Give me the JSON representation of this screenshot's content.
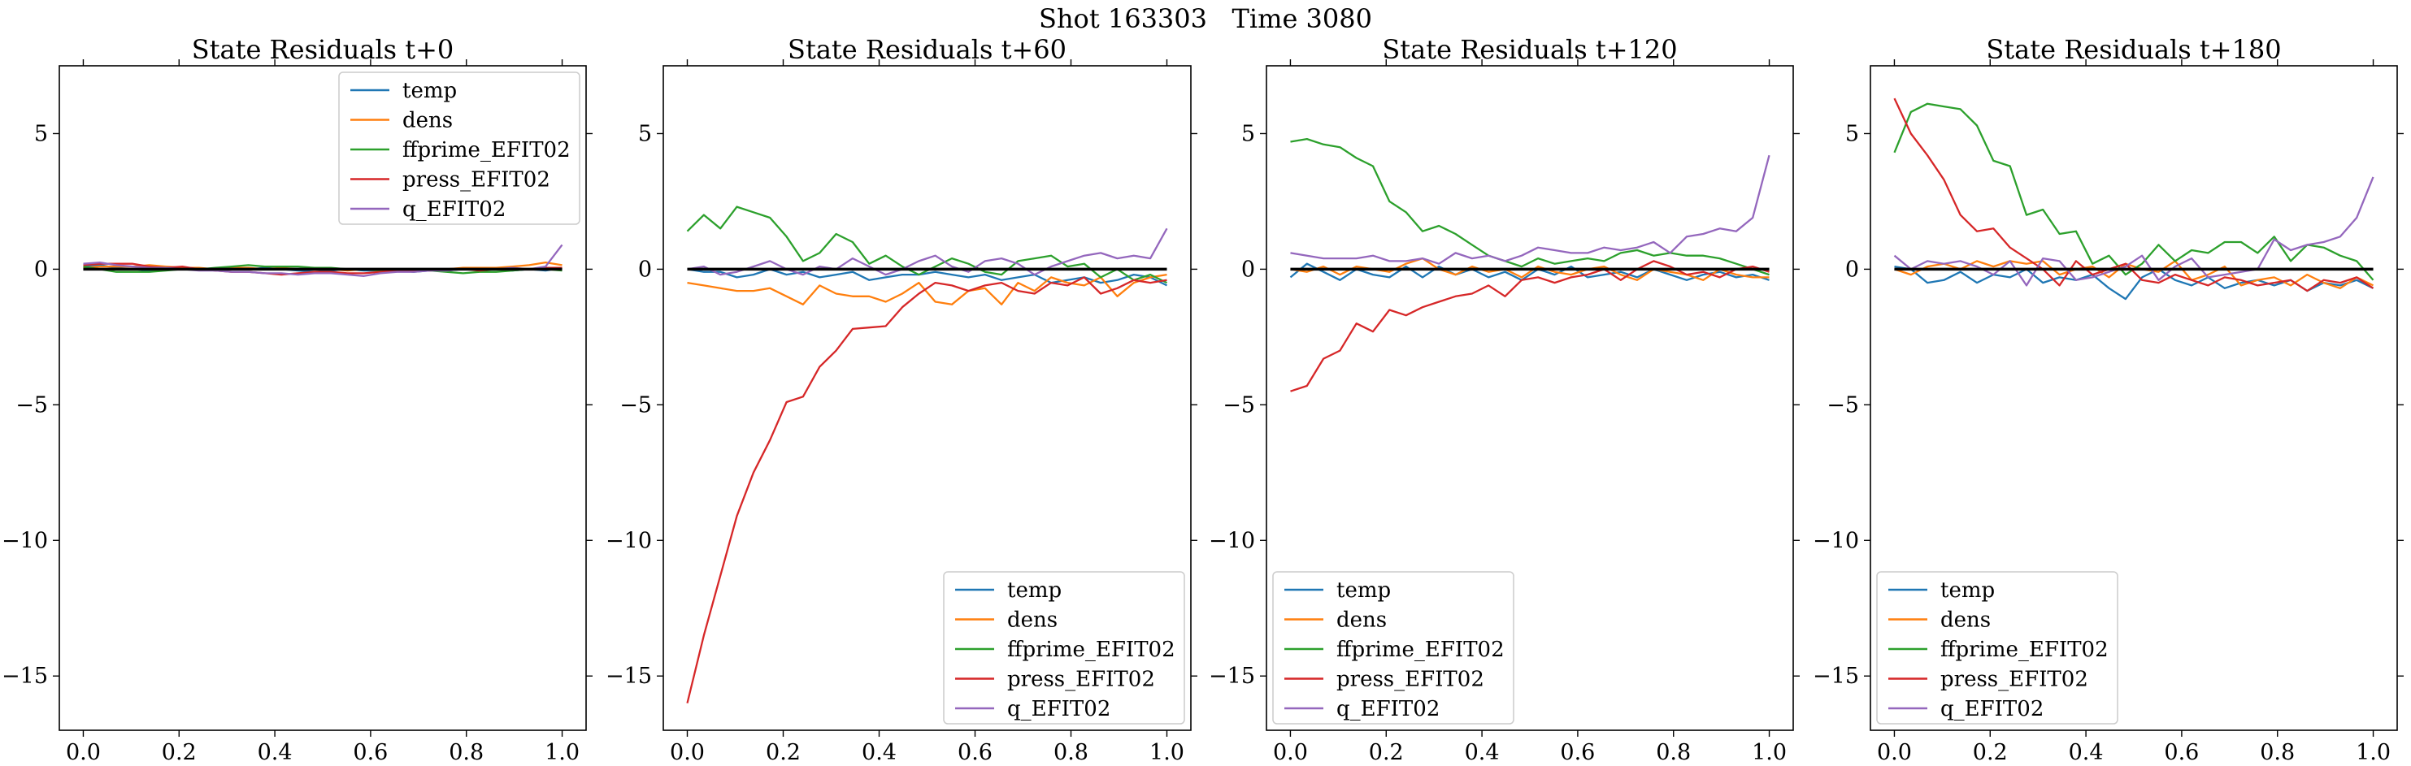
{
  "suptitle": "Shot 163303   Time 3080",
  "colors": {
    "temp": "#1f77b4",
    "dens": "#ff7f0e",
    "ffprime_EFIT02": "#2ca02c",
    "press_EFIT02": "#d62728",
    "q_EFIT02": "#9467bd",
    "zero_line": "#000000"
  },
  "chart_data": [
    {
      "type": "line",
      "title": "State Residuals t+0",
      "xlabel": "",
      "ylabel": "",
      "xlim": [
        -0.05,
        1.05
      ],
      "ylim": [
        -17,
        7.5
      ],
      "xticks": [
        "0.0",
        "0.2",
        "0.4",
        "0.6",
        "0.8",
        "1.0"
      ],
      "yticks": [
        "−15",
        "−10",
        "−5",
        "0",
        "5"
      ],
      "grid": false,
      "legend_position": "top-right",
      "zero_line": true,
      "x": [
        0,
        0.0345,
        0.069,
        0.1034,
        0.1379,
        0.1724,
        0.2069,
        0.2414,
        0.2759,
        0.3103,
        0.3448,
        0.3793,
        0.4138,
        0.4483,
        0.4828,
        0.5172,
        0.5517,
        0.5862,
        0.6207,
        0.6552,
        0.6897,
        0.7241,
        0.7586,
        0.7931,
        0.8276,
        0.8621,
        0.8966,
        0.931,
        0.9655,
        1.0
      ],
      "series": [
        {
          "name": "temp",
          "values": [
            0.1,
            0.15,
            0.05,
            0.0,
            -0.05,
            0.0,
            0.05,
            0.0,
            -0.05,
            0.0,
            0.0,
            0.05,
            0.0,
            -0.05,
            -0.1,
            -0.05,
            0.0,
            -0.05,
            -0.05,
            -0.05,
            -0.1,
            -0.05,
            -0.05,
            0.0,
            0.05,
            0.0,
            -0.05,
            0.0,
            -0.05,
            0.05
          ]
        },
        {
          "name": "dens",
          "values": [
            0.05,
            0.1,
            0.1,
            0.1,
            0.15,
            0.1,
            0.05,
            0.05,
            0.0,
            0.05,
            0.05,
            0.0,
            0.05,
            0.0,
            0.0,
            0.0,
            -0.05,
            0.0,
            -0.05,
            0.0,
            0.0,
            0.0,
            0.0,
            0.05,
            0.05,
            0.05,
            0.1,
            0.15,
            0.25,
            0.15
          ]
        },
        {
          "name": "ffprime_EFIT02",
          "values": [
            0.1,
            0.0,
            -0.1,
            -0.1,
            -0.1,
            -0.05,
            0.0,
            0.0,
            0.05,
            0.1,
            0.15,
            0.1,
            0.1,
            0.1,
            0.05,
            0.05,
            0.0,
            0.0,
            -0.05,
            -0.05,
            0.0,
            -0.05,
            -0.1,
            -0.15,
            -0.1,
            -0.1,
            -0.05,
            0.0,
            0.0,
            -0.05
          ]
        },
        {
          "name": "press_EFIT02",
          "values": [
            0.15,
            0.2,
            0.2,
            0.2,
            0.1,
            0.05,
            0.1,
            0.0,
            -0.05,
            -0.1,
            -0.1,
            -0.15,
            -0.2,
            -0.15,
            -0.1,
            -0.1,
            -0.15,
            -0.15,
            -0.1,
            -0.05,
            -0.05,
            -0.05,
            0.0,
            0.0,
            -0.05,
            0.0,
            0.0,
            0.0,
            0.05,
            0.05
          ]
        },
        {
          "name": "q_EFIT02",
          "values": [
            0.2,
            0.25,
            0.15,
            0.1,
            0.05,
            0.05,
            0.0,
            -0.05,
            -0.05,
            -0.1,
            -0.1,
            -0.15,
            -0.15,
            -0.2,
            -0.15,
            -0.15,
            -0.2,
            -0.25,
            -0.15,
            -0.1,
            -0.1,
            -0.05,
            -0.05,
            0.0,
            0.0,
            0.0,
            0.05,
            0.0,
            0.1,
            0.9
          ]
        }
      ]
    },
    {
      "type": "line",
      "title": "State Residuals t+60",
      "xlabel": "",
      "ylabel": "",
      "xlim": [
        -0.05,
        1.05
      ],
      "ylim": [
        -17,
        7.5
      ],
      "xticks": [
        "0.0",
        "0.2",
        "0.4",
        "0.6",
        "0.8",
        "1.0"
      ],
      "yticks": [
        "−15",
        "−10",
        "−5",
        "0",
        "5"
      ],
      "grid": false,
      "legend_position": "bottom-right",
      "zero_line": true,
      "x": [
        0,
        0.0345,
        0.069,
        0.1034,
        0.1379,
        0.1724,
        0.2069,
        0.2414,
        0.2759,
        0.3103,
        0.3448,
        0.3793,
        0.4138,
        0.4483,
        0.4828,
        0.5172,
        0.5517,
        0.5862,
        0.6207,
        0.6552,
        0.6897,
        0.7241,
        0.7586,
        0.7931,
        0.8276,
        0.8621,
        0.8966,
        0.931,
        0.9655,
        1.0
      ],
      "series": [
        {
          "name": "temp",
          "values": [
            0.0,
            -0.1,
            -0.1,
            -0.3,
            -0.2,
            0.0,
            -0.2,
            -0.1,
            -0.3,
            -0.2,
            -0.1,
            -0.4,
            -0.3,
            -0.2,
            -0.2,
            -0.1,
            -0.2,
            -0.3,
            -0.2,
            -0.4,
            -0.3,
            -0.2,
            -0.5,
            -0.4,
            -0.3,
            -0.5,
            -0.4,
            -0.2,
            -0.3,
            -0.6
          ]
        },
        {
          "name": "dens",
          "values": [
            -0.5,
            -0.6,
            -0.7,
            -0.8,
            -0.8,
            -0.7,
            -1.0,
            -1.3,
            -0.6,
            -0.9,
            -1.0,
            -1.0,
            -1.2,
            -0.9,
            -0.5,
            -1.2,
            -1.3,
            -0.8,
            -0.7,
            -1.3,
            -0.5,
            -0.8,
            -0.3,
            -0.5,
            -0.6,
            -0.3,
            -1.0,
            -0.5,
            -0.3,
            -0.2
          ]
        },
        {
          "name": "ffprime_EFIT02",
          "values": [
            1.4,
            2.0,
            1.5,
            2.3,
            2.1,
            1.9,
            1.2,
            0.3,
            0.6,
            1.3,
            1.0,
            0.2,
            0.5,
            0.1,
            -0.2,
            0.1,
            0.4,
            0.2,
            -0.1,
            -0.2,
            0.3,
            0.4,
            0.5,
            0.1,
            0.2,
            -0.3,
            0.0,
            -0.4,
            -0.2,
            -0.5
          ]
        },
        {
          "name": "press_EFIT02",
          "values": [
            -16.0,
            -13.5,
            -11.3,
            -9.1,
            -7.5,
            -6.3,
            -4.9,
            -4.7,
            -3.6,
            -3.0,
            -2.2,
            -2.15,
            -2.1,
            -1.4,
            -0.9,
            -0.5,
            -0.6,
            -0.8,
            -0.6,
            -0.5,
            -0.8,
            -0.9,
            -0.5,
            -0.6,
            -0.3,
            -0.9,
            -0.7,
            -0.4,
            -0.5,
            -0.4
          ]
        },
        {
          "name": "q_EFIT02",
          "values": [
            0.0,
            0.1,
            -0.2,
            -0.1,
            0.1,
            0.3,
            0.0,
            -0.2,
            0.1,
            0.0,
            0.4,
            0.1,
            -0.2,
            0.0,
            0.3,
            0.5,
            0.1,
            -0.1,
            0.3,
            0.4,
            0.2,
            -0.2,
            0.1,
            0.3,
            0.5,
            0.6,
            0.4,
            0.5,
            0.4,
            1.5
          ]
        }
      ]
    },
    {
      "type": "line",
      "title": "State Residuals t+120",
      "xlabel": "",
      "ylabel": "",
      "xlim": [
        -0.05,
        1.05
      ],
      "ylim": [
        -17,
        7.5
      ],
      "xticks": [
        "0.0",
        "0.2",
        "0.4",
        "0.6",
        "0.8",
        "1.0"
      ],
      "yticks": [
        "−15",
        "−10",
        "−5",
        "0",
        "5"
      ],
      "grid": false,
      "legend_position": "bottom-left",
      "zero_line": true,
      "x": [
        0,
        0.0345,
        0.069,
        0.1034,
        0.1379,
        0.1724,
        0.2069,
        0.2414,
        0.2759,
        0.3103,
        0.3448,
        0.3793,
        0.4138,
        0.4483,
        0.4828,
        0.5172,
        0.5517,
        0.5862,
        0.6207,
        0.6552,
        0.6897,
        0.7241,
        0.7586,
        0.7931,
        0.8276,
        0.8621,
        0.8966,
        0.931,
        0.9655,
        1.0
      ],
      "series": [
        {
          "name": "temp",
          "values": [
            -0.3,
            0.2,
            -0.1,
            -0.4,
            0.0,
            -0.2,
            -0.3,
            0.1,
            -0.3,
            0.1,
            -0.2,
            0.0,
            -0.3,
            -0.1,
            -0.4,
            0.0,
            -0.2,
            0.1,
            -0.3,
            -0.2,
            -0.1,
            -0.3,
            0.0,
            -0.2,
            -0.4,
            -0.2,
            -0.1,
            -0.3,
            -0.2,
            -0.4
          ]
        },
        {
          "name": "dens",
          "values": [
            0.0,
            -0.1,
            0.1,
            -0.2,
            0.1,
            0.0,
            -0.1,
            0.2,
            0.4,
            0.0,
            -0.2,
            0.1,
            -0.1,
            0.0,
            -0.3,
            0.1,
            -0.1,
            -0.2,
            0.0,
            0.1,
            -0.2,
            -0.4,
            0.0,
            -0.1,
            -0.2,
            -0.4,
            0.0,
            -0.2,
            -0.3,
            -0.3
          ]
        },
        {
          "name": "ffprime_EFIT02",
          "values": [
            4.7,
            4.8,
            4.6,
            4.5,
            4.1,
            3.8,
            2.5,
            2.1,
            1.4,
            1.6,
            1.3,
            0.9,
            0.5,
            0.3,
            0.1,
            0.4,
            0.2,
            0.3,
            0.4,
            0.3,
            0.6,
            0.7,
            0.5,
            0.6,
            0.5,
            0.5,
            0.4,
            0.2,
            0.0,
            -0.2
          ]
        },
        {
          "name": "press_EFIT02",
          "values": [
            -4.5,
            -4.3,
            -3.3,
            -3.0,
            -2.0,
            -2.3,
            -1.5,
            -1.7,
            -1.4,
            -1.2,
            -1.0,
            -0.9,
            -0.6,
            -1.0,
            -0.4,
            -0.3,
            -0.5,
            -0.3,
            -0.2,
            0.0,
            -0.4,
            0.0,
            0.3,
            0.1,
            -0.2,
            -0.1,
            -0.3,
            0.0,
            0.1,
            -0.1
          ]
        },
        {
          "name": "q_EFIT02",
          "values": [
            0.6,
            0.5,
            0.4,
            0.4,
            0.4,
            0.5,
            0.3,
            0.3,
            0.4,
            0.2,
            0.6,
            0.4,
            0.5,
            0.3,
            0.5,
            0.8,
            0.7,
            0.6,
            0.6,
            0.8,
            0.7,
            0.8,
            1.0,
            0.6,
            1.2,
            1.3,
            1.5,
            1.4,
            1.9,
            4.2
          ]
        }
      ]
    },
    {
      "type": "line",
      "title": "State Residuals t+180",
      "xlabel": "",
      "ylabel": "",
      "xlim": [
        -0.05,
        1.05
      ],
      "ylim": [
        -17,
        7.5
      ],
      "xticks": [
        "0.0",
        "0.2",
        "0.4",
        "0.6",
        "0.8",
        "1.0"
      ],
      "yticks": [
        "−15",
        "−10",
        "−5",
        "0",
        "5"
      ],
      "grid": false,
      "legend_position": "bottom-left",
      "zero_line": true,
      "x": [
        0,
        0.0345,
        0.069,
        0.1034,
        0.1379,
        0.1724,
        0.2069,
        0.2414,
        0.2759,
        0.3103,
        0.3448,
        0.3793,
        0.4138,
        0.4483,
        0.4828,
        0.5172,
        0.5517,
        0.5862,
        0.6207,
        0.6552,
        0.6897,
        0.7241,
        0.7586,
        0.7931,
        0.8276,
        0.8621,
        0.8966,
        0.931,
        0.9655,
        1.0
      ],
      "series": [
        {
          "name": "temp",
          "values": [
            0.1,
            0.0,
            -0.5,
            -0.4,
            -0.1,
            -0.5,
            -0.2,
            -0.3,
            0.0,
            -0.5,
            -0.3,
            -0.4,
            -0.2,
            -0.7,
            -1.1,
            -0.3,
            0.0,
            -0.4,
            -0.6,
            -0.3,
            -0.7,
            -0.5,
            -0.4,
            -0.6,
            -0.4,
            -0.8,
            -0.5,
            -0.6,
            -0.4,
            -0.7
          ]
        },
        {
          "name": "dens",
          "values": [
            0.0,
            -0.2,
            0.1,
            0.2,
            0.0,
            0.3,
            0.1,
            0.3,
            0.2,
            0.3,
            -0.2,
            0.0,
            0.1,
            -0.3,
            0.2,
            0.0,
            -0.1,
            0.3,
            -0.4,
            -0.2,
            0.1,
            -0.6,
            -0.4,
            -0.3,
            -0.6,
            -0.2,
            -0.5,
            -0.7,
            -0.3,
            -0.6
          ]
        },
        {
          "name": "ffprime_EFIT02",
          "values": [
            4.3,
            5.8,
            6.1,
            6.0,
            5.9,
            5.3,
            4.0,
            3.8,
            2.0,
            2.2,
            1.3,
            1.4,
            0.2,
            0.5,
            -0.2,
            0.2,
            0.9,
            0.3,
            0.7,
            0.6,
            1.0,
            1.0,
            0.6,
            1.2,
            0.3,
            0.9,
            0.8,
            0.5,
            0.3,
            -0.4
          ]
        },
        {
          "name": "press_EFIT02",
          "values": [
            6.3,
            5.0,
            4.2,
            3.3,
            2.0,
            1.4,
            1.5,
            0.8,
            0.4,
            0.0,
            -0.6,
            0.3,
            -0.2,
            0.0,
            0.2,
            -0.4,
            -0.5,
            -0.2,
            -0.4,
            -0.6,
            -0.3,
            -0.4,
            -0.6,
            -0.5,
            -0.4,
            -0.8,
            -0.4,
            -0.5,
            -0.3,
            -0.7
          ]
        },
        {
          "name": "q_EFIT02",
          "values": [
            0.5,
            0.0,
            0.3,
            0.2,
            0.3,
            0.1,
            -0.2,
            0.3,
            -0.6,
            0.4,
            0.3,
            -0.4,
            -0.3,
            -0.1,
            0.1,
            0.5,
            -0.4,
            0.1,
            0.4,
            -0.3,
            -0.2,
            -0.1,
            0.0,
            1.1,
            0.7,
            0.9,
            1.0,
            1.2,
            1.9,
            3.4
          ]
        }
      ]
    }
  ]
}
